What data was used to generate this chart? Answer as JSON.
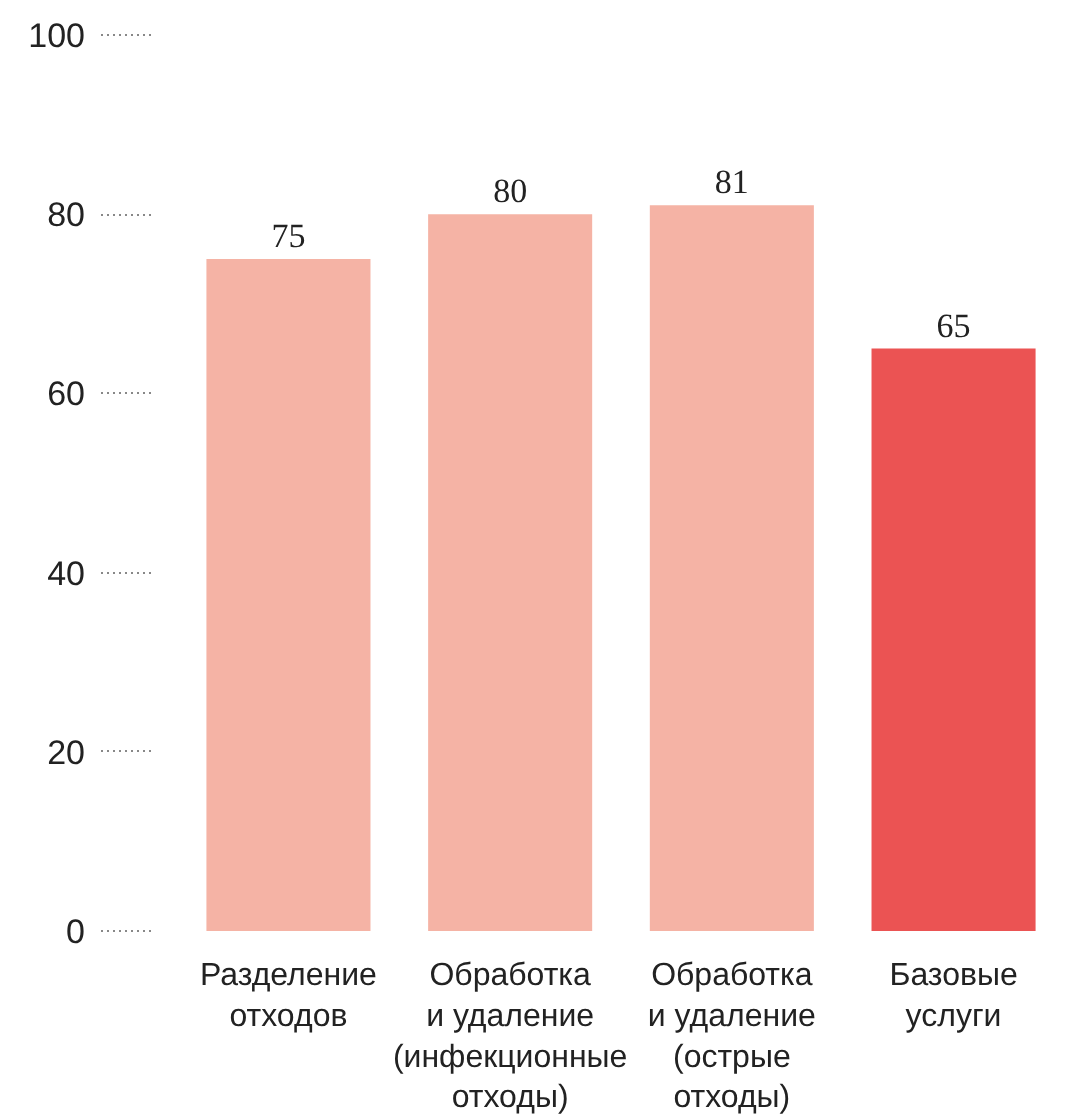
{
  "chart_data": {
    "type": "bar",
    "categories": [
      "Разделение\nотходов",
      "Обработка\nи удаление\n(инфекционные\nотходы)",
      "Обработка\nи удаление\n(острые\nотходы)",
      "Базовые\nуслуги"
    ],
    "values": [
      75,
      80,
      81,
      65
    ],
    "colors": [
      "#f5b3a5",
      "#f5b3a5",
      "#f5b3a5",
      "#eb5353"
    ],
    "ylim": [
      0,
      100
    ],
    "yticks": [
      0,
      20,
      40,
      60,
      80,
      100
    ],
    "grid": false,
    "data_labels": true
  }
}
